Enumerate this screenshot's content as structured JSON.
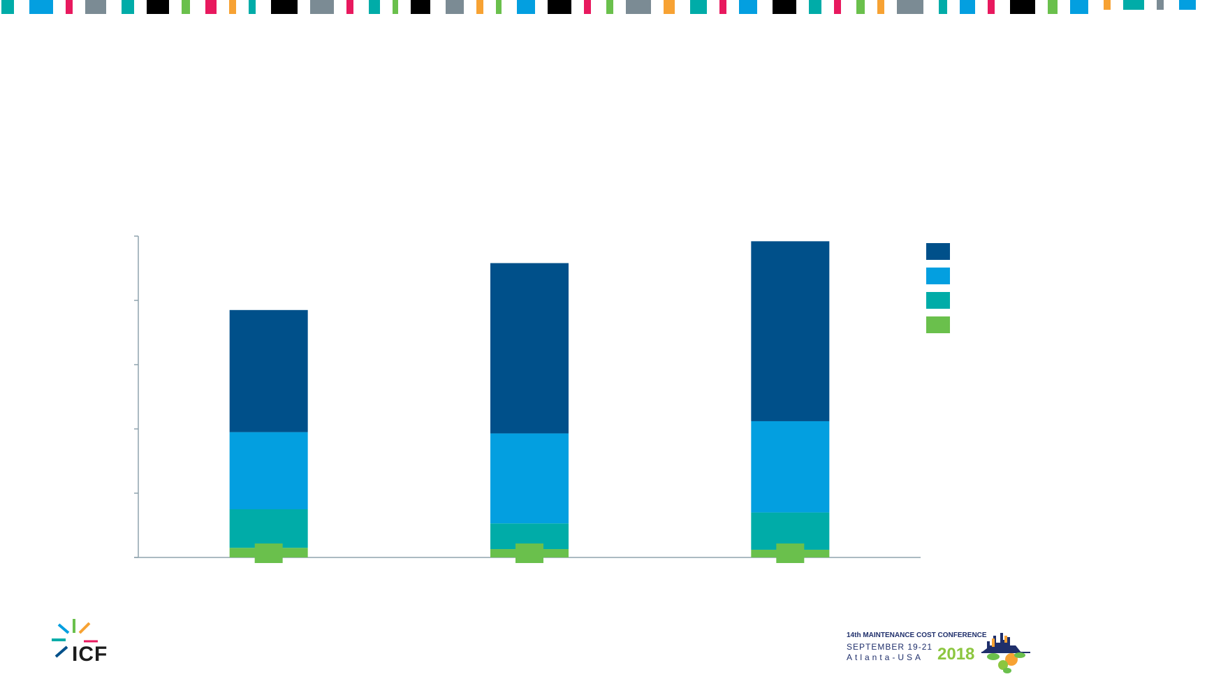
{
  "colors": {
    "navy": "#00508a",
    "blue": "#039fe0",
    "teal": "#00aca8",
    "green": "#6ac04c",
    "gray": "#7b8b94",
    "black": "#000000",
    "pink": "#e8195e",
    "orange": "#f7a233",
    "axis": "#8fa3ad"
  },
  "decorative_strip_colors": [
    "teal",
    "blue",
    "pink",
    "gray",
    "teal",
    "black",
    "green",
    "pink",
    "orange",
    "teal",
    "black",
    "gray",
    "pink",
    "teal",
    "green",
    "black",
    "gray",
    "orange",
    "green",
    "blue",
    "black",
    "pink",
    "green",
    "gray",
    "orange",
    "teal",
    "pink",
    "blue",
    "black",
    "teal",
    "pink",
    "green",
    "orange",
    "gray",
    "teal",
    "blue",
    "pink",
    "black",
    "green",
    "blue",
    "orange",
    "teal",
    "gray",
    "blue",
    "pink"
  ],
  "chart_data": {
    "type": "bar",
    "stacked": true,
    "categories": [
      "",
      "",
      ""
    ],
    "series": [
      {
        "color": "green",
        "values": [
          0.15,
          0.13,
          0.12
        ]
      },
      {
        "color": "teal",
        "values": [
          0.6,
          0.4,
          0.58
        ]
      },
      {
        "color": "blue",
        "values": [
          1.2,
          1.4,
          1.42
        ]
      },
      {
        "color": "navy",
        "values": [
          1.9,
          2.65,
          2.8
        ]
      }
    ],
    "ylim": [
      0,
      5
    ],
    "y_ticks": [
      0,
      1,
      2,
      3,
      4,
      5
    ],
    "title": "",
    "xlabel": "",
    "ylabel": "",
    "legend_position": "right",
    "grid": false
  },
  "logos": {
    "icf_text": "ICF",
    "conf_line1": "14th MAINTENANCE COST CONFERENCE",
    "conf_line2": "SEPTEMBER 19-21",
    "conf_line3": "Atlanta-USA",
    "conf_year": "2018"
  }
}
